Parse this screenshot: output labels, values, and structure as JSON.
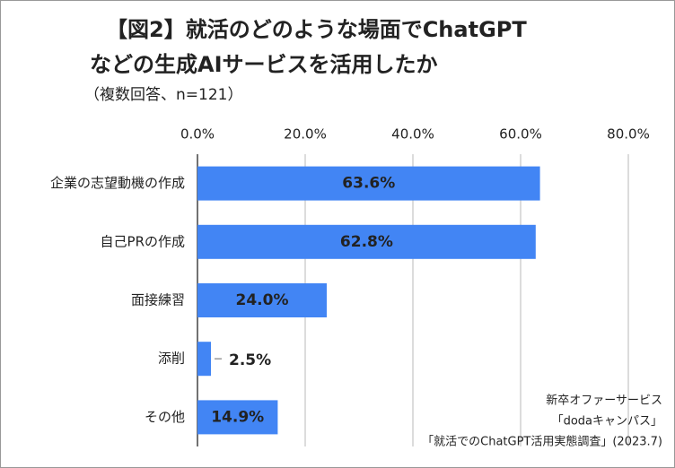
{
  "chart_data": {
    "type": "bar",
    "orientation": "horizontal",
    "title": [
      "【図2】就活のどのような場面でChatGPT",
      "などの生成AIサービスを活用したか"
    ],
    "subtitle": "（複数回答、n=121）",
    "categories": [
      "企業の志望動機の作成",
      "自己PRの作成",
      "面接練習",
      "添削",
      "その他"
    ],
    "values": [
      63.6,
      62.8,
      24.0,
      2.5,
      14.9
    ],
    "value_labels": [
      "63.6%",
      "62.8%",
      "24.0%",
      "2.5%",
      "14.9%"
    ],
    "color": "#4285f4",
    "xlim": [
      0,
      80
    ],
    "xticks": [
      {
        "value": 0,
        "label": "0.0%"
      },
      {
        "value": 20,
        "label": "20.0%"
      },
      {
        "value": 40,
        "label": "40.0%"
      },
      {
        "value": 60,
        "label": "60.0%"
      },
      {
        "value": 80,
        "label": "80.0%"
      }
    ],
    "grid": true,
    "source": [
      "新卒オファーサービス",
      "「dodaキャンパス」",
      "「就活でのChatGPT活用実態調査」(2023.7)"
    ]
  }
}
